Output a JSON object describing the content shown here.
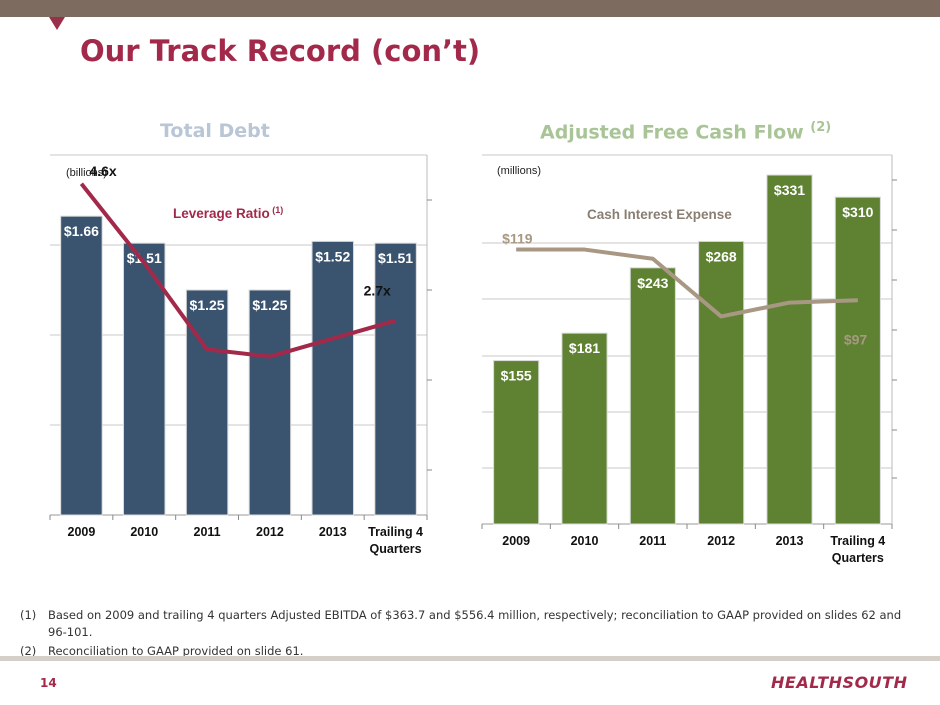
{
  "page": {
    "title": "Our Track Record (con’t)",
    "page_number": "14",
    "logo_text": "HEALTHSOUTH",
    "footnotes": [
      {
        "num": "(1)",
        "text": "Based on 2009 and trailing 4 quarters Adjusted EBITDA of $363.7 and $556.4 million, respectively; reconciliation to GAAP provided on slides 62 and 96-101."
      },
      {
        "num": "(2)",
        "text": "Reconciliation to GAAP provided on slide 61."
      }
    ]
  },
  "colors": {
    "accent": "#a3294a",
    "debt_bar": "#3a5470",
    "cash_bar": "#5e8232",
    "interest_line": "#a89883",
    "leverage_line": "#a3294a"
  },
  "chart_data": [
    {
      "type": "bar",
      "title": "Total Debt",
      "title_sup": "",
      "unit_label": "(billions)",
      "categories": [
        "2009",
        "2010",
        "2011",
        "2012",
        "2013",
        "Trailing 4 Quarters"
      ],
      "values": [
        1.66,
        1.51,
        1.25,
        1.25,
        1.52,
        1.51
      ],
      "value_labels": [
        "$1.66",
        "$1.51",
        "$1.25",
        "$1.25",
        "$1.52",
        "$1.51"
      ],
      "ylim": [
        0,
        2.0
      ],
      "secondary_series": {
        "type": "line",
        "name": "Leverage Ratio",
        "name_sup": "(1)",
        "values": [
          4.6,
          3.5,
          2.3,
          2.2,
          2.45,
          2.7
        ],
        "labels": [
          "4.6x",
          "",
          "",
          "",
          "",
          "2.7x"
        ],
        "ylim": [
          0,
          5.0
        ]
      }
    },
    {
      "type": "bar",
      "title": "Adjusted Free Cash Flow",
      "title_sup": "(2)",
      "unit_label": "(millions)",
      "categories": [
        "2009",
        "2010",
        "2011",
        "2012",
        "2013",
        "Trailing 4 Quarters"
      ],
      "values": [
        155,
        181,
        243,
        268,
        331,
        310
      ],
      "value_labels": [
        "$155",
        "$181",
        "$243",
        "$268",
        "$331",
        "$310"
      ],
      "ylim": [
        0,
        350
      ],
      "secondary_series": {
        "type": "line",
        "name": "Cash Interest Expense",
        "name_sup": "",
        "values": [
          119,
          119,
          115,
          90,
          96,
          97
        ],
        "labels": [
          "$119",
          "",
          "",
          "",
          "",
          "$97"
        ],
        "ylim": [
          0,
          160
        ]
      }
    }
  ]
}
